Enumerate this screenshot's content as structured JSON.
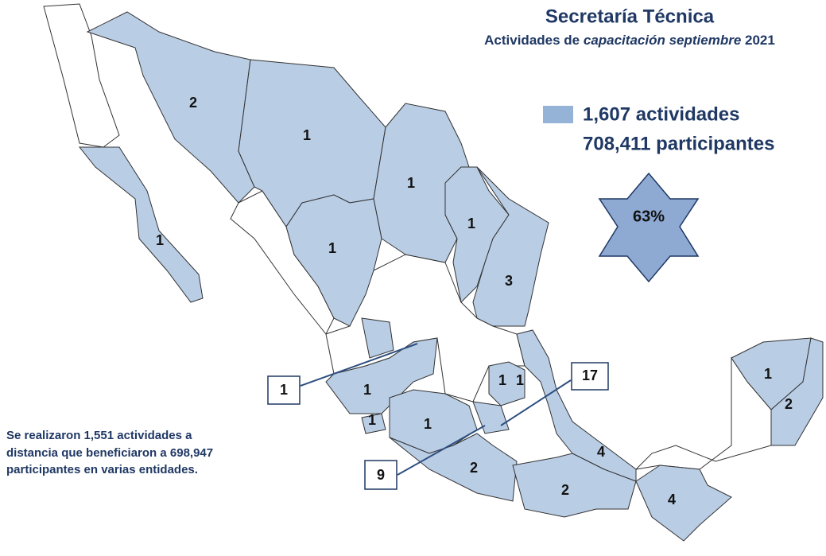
{
  "header": {
    "title": "Secretaría Técnica",
    "subtitle": [
      {
        "text": "Actividades de ",
        "italic": false
      },
      {
        "text": "capacitación",
        "italic": true
      },
      {
        "text": " septiembre",
        "italic": true
      },
      {
        "text": " 2021",
        "italic": false
      }
    ]
  },
  "legend": {
    "lines": [
      "1,607 actividades",
      "708,411 participantes"
    ]
  },
  "badge": "63%",
  "note": [
    "Se realizaron 1,551 actividades a",
    "distancia que beneficiaron a 698,947",
    "participantes en varias entidades."
  ],
  "states": [
    2,
    1,
    1,
    1,
    1,
    1,
    3,
    1,
    1,
    1,
    1,
    1,
    2,
    4,
    2,
    4,
    1,
    2
  ],
  "callouts": [
    1,
    17,
    9
  ]
}
